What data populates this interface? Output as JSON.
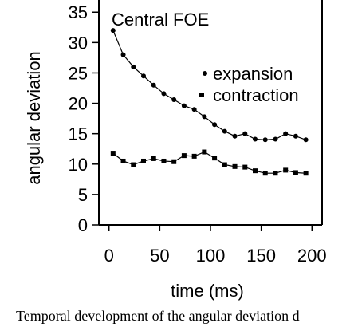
{
  "chart_data": {
    "type": "line",
    "title": "Central FOE",
    "xlabel": "time (ms)",
    "ylabel": "angular deviation",
    "xlim": [
      -10,
      210
    ],
    "ylim": [
      0,
      37
    ],
    "x_ticks": [
      0,
      50,
      100,
      150,
      200
    ],
    "y_ticks": [
      0,
      5,
      10,
      15,
      20,
      25,
      30,
      35
    ],
    "legend_position": "right",
    "series": [
      {
        "name": "expansion",
        "marker": "circle",
        "x": [
          4,
          14,
          24,
          34,
          44,
          54,
          64,
          74,
          84,
          94,
          104,
          114,
          124,
          134,
          144,
          154,
          164,
          174,
          184,
          194
        ],
        "y": [
          32.0,
          28.0,
          26.0,
          24.5,
          23.0,
          21.6,
          20.6,
          19.6,
          19.0,
          17.8,
          16.5,
          15.4,
          14.6,
          15.0,
          14.1,
          14.0,
          14.1,
          15.0,
          14.6,
          14.0
        ]
      },
      {
        "name": "contraction",
        "marker": "square",
        "x": [
          4,
          14,
          24,
          34,
          44,
          54,
          64,
          74,
          84,
          94,
          104,
          114,
          124,
          134,
          144,
          154,
          164,
          174,
          184,
          194
        ],
        "y": [
          11.8,
          10.5,
          9.9,
          10.5,
          10.9,
          10.5,
          10.4,
          11.4,
          11.3,
          12.0,
          11.0,
          9.9,
          9.6,
          9.5,
          8.9,
          8.5,
          8.5,
          9.0,
          8.6,
          8.5
        ]
      }
    ]
  },
  "caption": "Temporal development of the angular deviation d"
}
